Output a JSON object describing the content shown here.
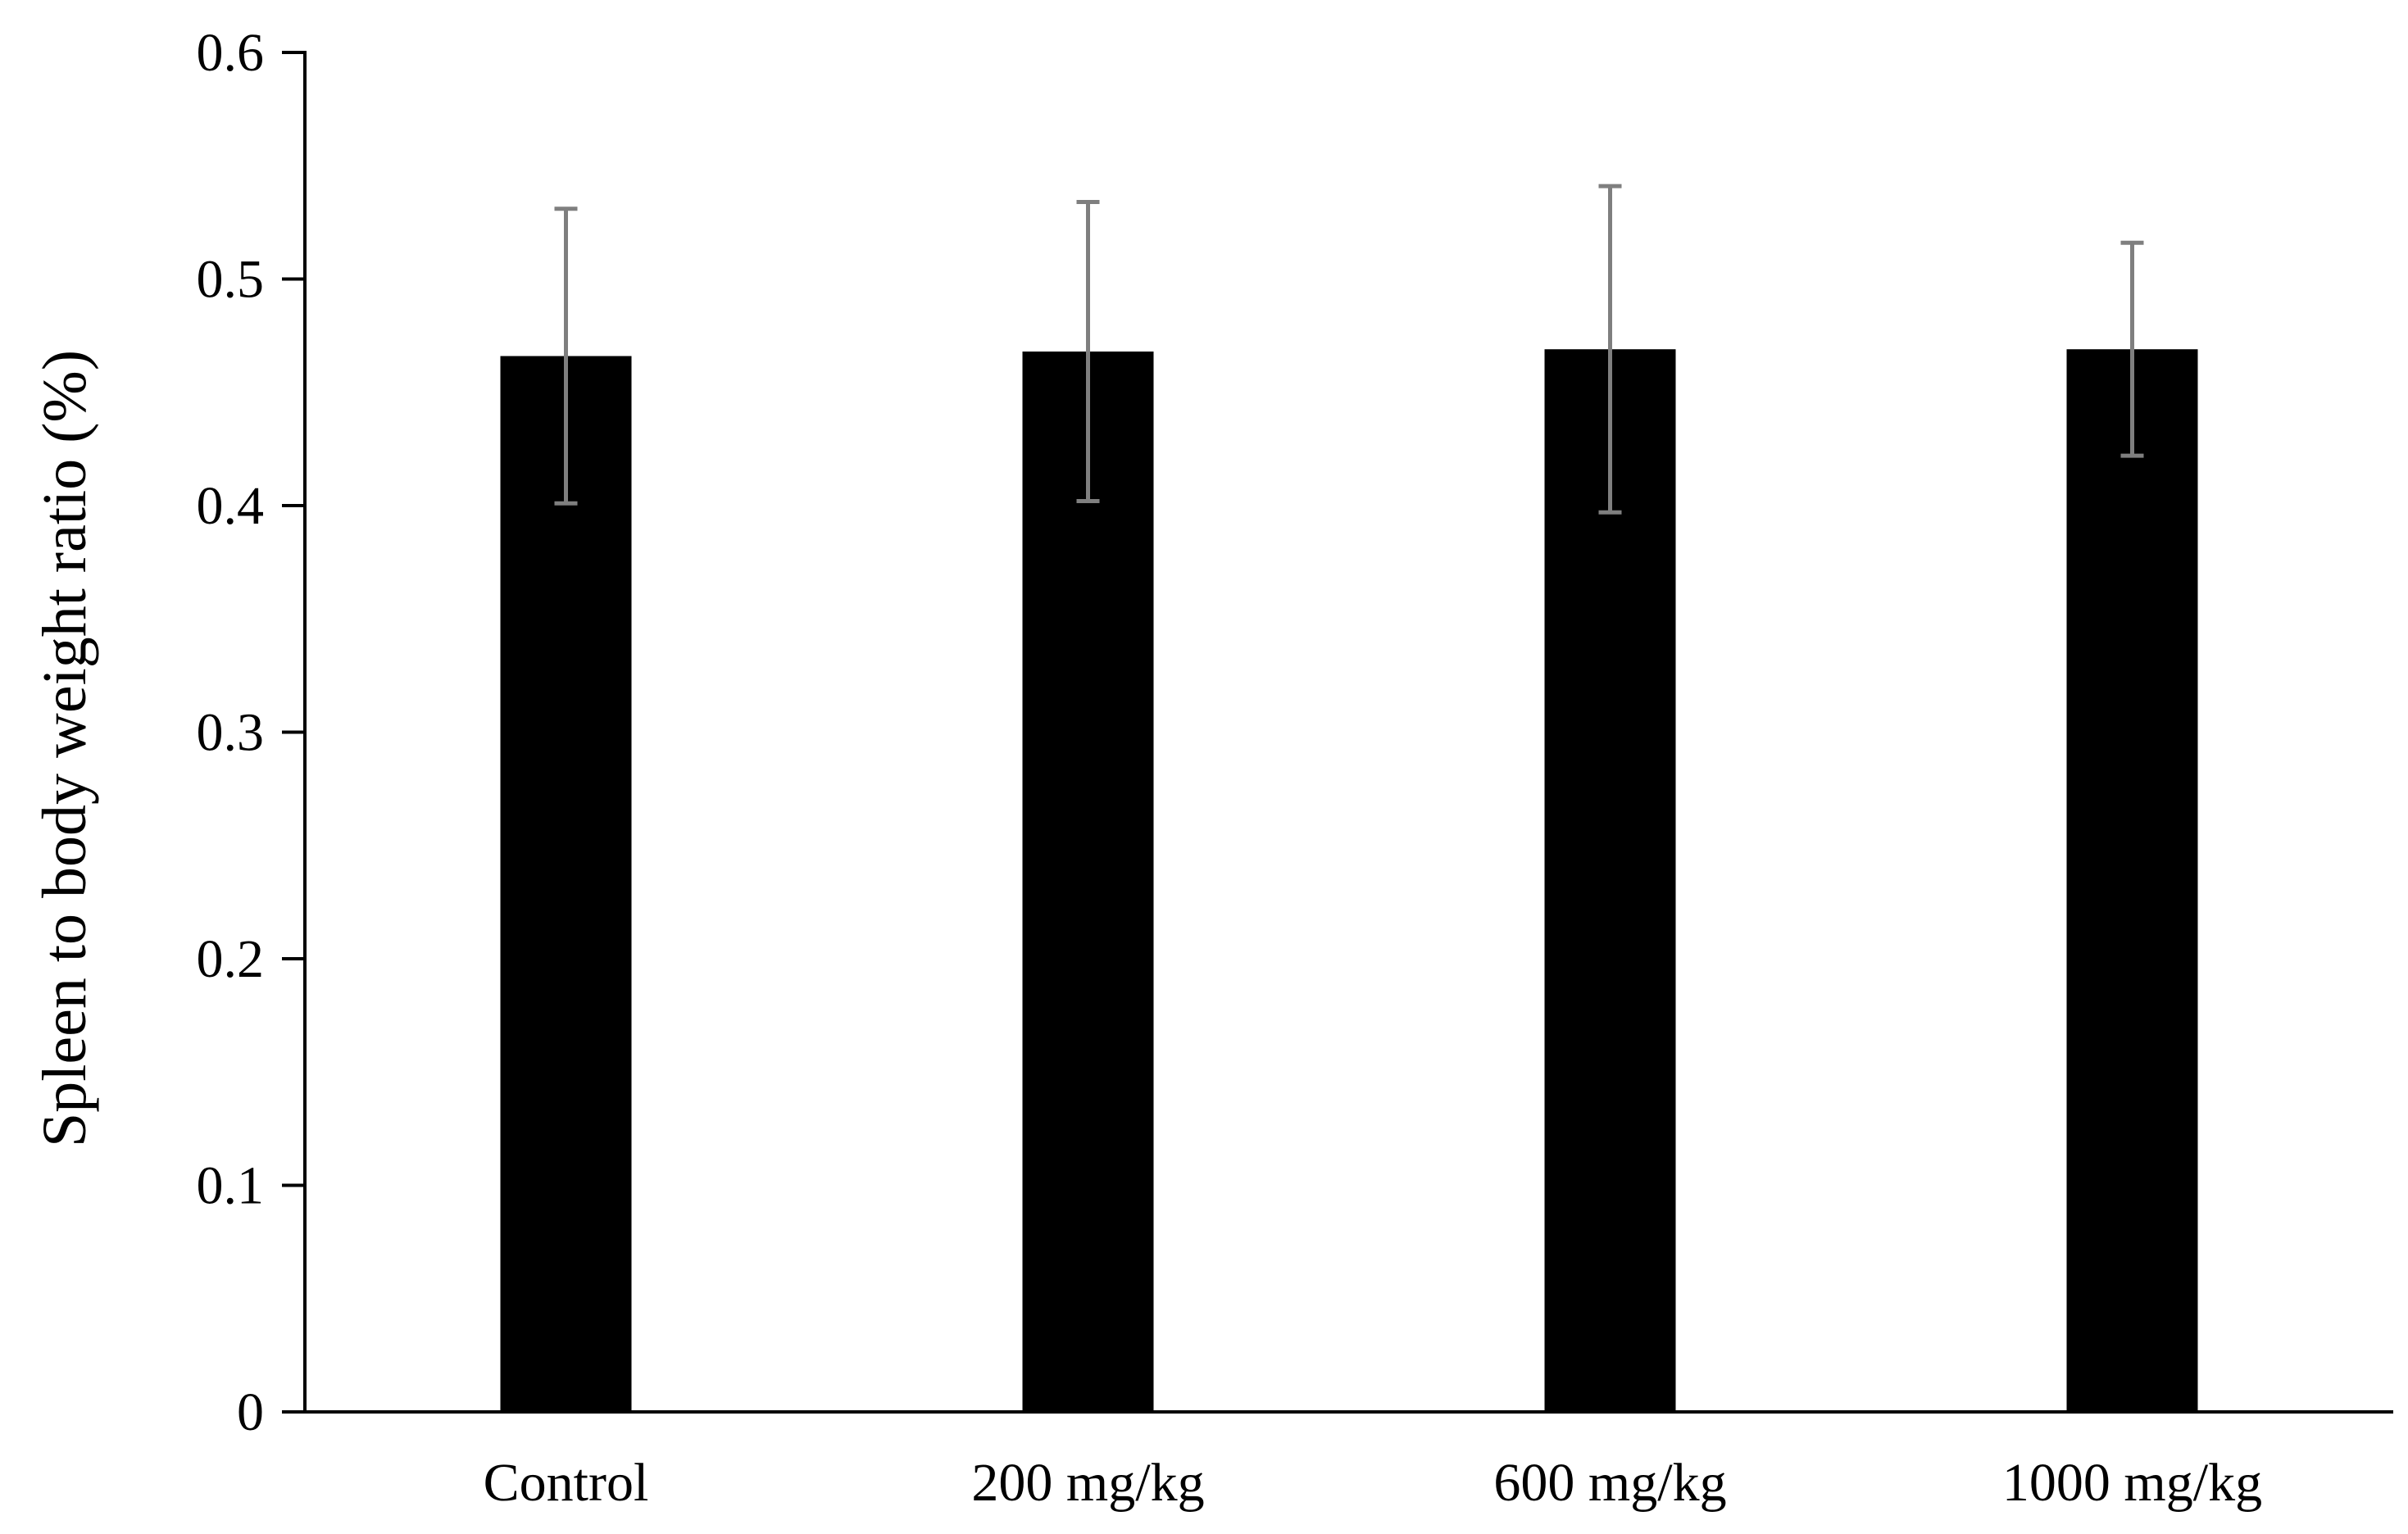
{
  "chart_data": {
    "type": "bar",
    "title": "",
    "xlabel": "",
    "ylabel": "Spleen to body weight ratio (%)",
    "categories": [
      "Control",
      "200 mg/kg",
      "600 mg/kg",
      "1000 mg/kg"
    ],
    "series": [
      {
        "values": [
          0.466,
          0.468,
          0.469,
          0.469
        ],
        "error": [
          0.065,
          0.066,
          0.072,
          0.047
        ]
      }
    ],
    "ylim": [
      0,
      0.6
    ],
    "yticks": [
      "0",
      "0.1",
      "0.2",
      "0.3",
      "0.4",
      "0.5",
      "0.6"
    ],
    "grid": false,
    "legend": "none",
    "colors": {
      "bar": "#000000",
      "error_bar": "#7f7f7f",
      "axis": "#000000"
    }
  }
}
